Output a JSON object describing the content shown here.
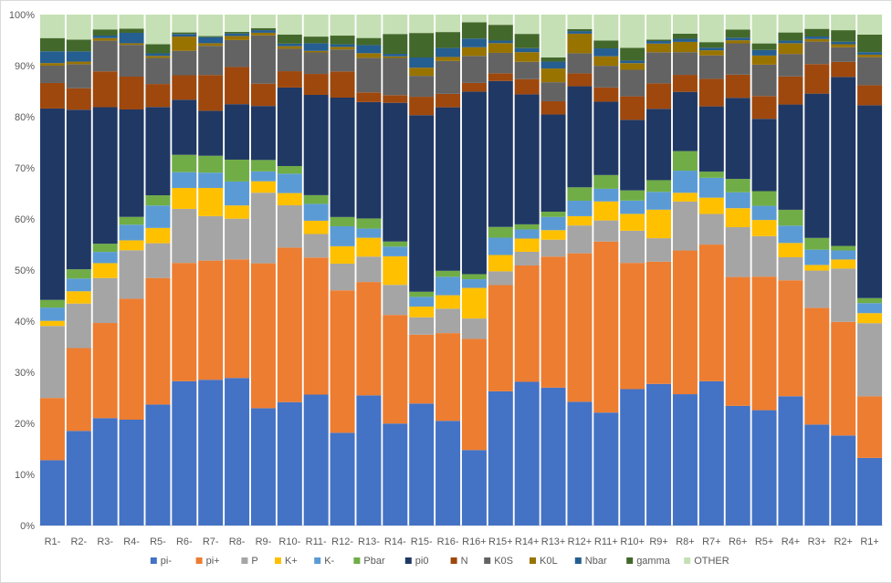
{
  "chart_data": {
    "type": "bar",
    "stacked": "percent",
    "title": "",
    "xlabel": "",
    "ylabel": "",
    "ylim": [
      0,
      100
    ],
    "yticks": [
      "0%",
      "10%",
      "20%",
      "30%",
      "40%",
      "50%",
      "60%",
      "70%",
      "80%",
      "90%",
      "100%"
    ],
    "grid": false,
    "legend_position": "bottom",
    "categories": [
      "R1-",
      "R2-",
      "R3-",
      "R4-",
      "R5-",
      "R6-",
      "R7-",
      "R8-",
      "R9-",
      "R10-",
      "R11-",
      "R12-",
      "R13-",
      "R14-",
      "R15-",
      "R16-",
      "R16+",
      "R15+",
      "R14+",
      "R13+",
      "R12+",
      "R11+",
      "R10+",
      "R9+",
      "R8+",
      "R7+",
      "R6+",
      "R5+",
      "R4+",
      "R3+",
      "R2+",
      "R1+"
    ],
    "series": [
      {
        "name": "pi-",
        "color": "#4472C4",
        "values": [
          12.8,
          18.5,
          21.0,
          20.3,
          23.7,
          28.3,
          28.5,
          29.0,
          22.6,
          24.2,
          25.6,
          18.1,
          25.6,
          20.0,
          23.9,
          21.0,
          14.8,
          26.3,
          28.3,
          26.1,
          24.0,
          21.4,
          26.7,
          27.8,
          25.5,
          28.3,
          23.3,
          22.8,
          25.3,
          19.8,
          17.9,
          13.5
        ]
      },
      {
        "name": "pi+",
        "color": "#ED7D31",
        "values": [
          12.2,
          16.2,
          18.6,
          23.2,
          24.8,
          23.2,
          23.3,
          23.3,
          27.9,
          30.3,
          26.8,
          27.8,
          22.3,
          21.3,
          13.5,
          17.6,
          21.8,
          20.8,
          22.9,
          24.8,
          28.8,
          32.4,
          24.7,
          24.0,
          27.9,
          26.8,
          25.1,
          26.4,
          22.7,
          22.9,
          22.6,
          12.3
        ]
      },
      {
        "name": "P",
        "color": "#A5A5A5",
        "values": [
          14.1,
          8.7,
          8.8,
          9.3,
          6.8,
          10.6,
          8.7,
          8.0,
          13.6,
          8.3,
          4.6,
          5.2,
          5.0,
          5.9,
          3.4,
          4.9,
          4.0,
          2.7,
          2.7,
          3.2,
          5.4,
          4.0,
          6.3,
          4.6,
          9.5,
          6.0,
          9.7,
          8.0,
          4.5,
          7.3,
          10.6,
          14.6
        ]
      },
      {
        "name": "K+",
        "color": "#FFC000",
        "values": [
          1.0,
          2.4,
          2.9,
          1.9,
          3.0,
          4.1,
          5.5,
          2.6,
          2.2,
          2.4,
          2.6,
          3.4,
          3.7,
          5.6,
          2.1,
          2.7,
          6.0,
          3.2,
          2.6,
          1.8,
          1.8,
          3.6,
          3.3,
          5.6,
          1.7,
          3.2,
          3.7,
          3.2,
          2.8,
          1.1,
          1.8,
          2.0
        ]
      },
      {
        "name": "K-",
        "color": "#5B9BD5",
        "values": [
          2.6,
          2.5,
          2.2,
          3.0,
          4.4,
          3.1,
          3.0,
          4.7,
          1.9,
          3.8,
          3.3,
          3.9,
          1.8,
          1.9,
          1.9,
          3.7,
          1.7,
          3.4,
          1.8,
          2.5,
          3.0,
          2.4,
          2.6,
          3.5,
          4.3,
          3.9,
          3.1,
          2.8,
          3.4,
          3.0,
          1.8,
          2.0
        ]
      },
      {
        "name": "Pbar",
        "color": "#70AD47",
        "values": [
          1.5,
          1.8,
          1.6,
          1.5,
          2.0,
          3.4,
          3.3,
          4.3,
          2.2,
          1.5,
          1.7,
          1.8,
          2.0,
          1.0,
          1.0,
          1.2,
          1.0,
          2.1,
          1.0,
          1.0,
          2.6,
          2.6,
          2.0,
          2.3,
          3.8,
          1.2,
          2.6,
          2.9,
          3.1,
          2.3,
          0.9,
          1.0
        ]
      },
      {
        "name": "pi0",
        "color": "#203864",
        "values": [
          37.5,
          31.2,
          26.7,
          20.6,
          17.3,
          10.8,
          8.8,
          10.9,
          10.4,
          15.4,
          19.6,
          23.3,
          22.9,
          27.2,
          34.6,
          32.8,
          35.8,
          28.6,
          25.6,
          18.4,
          19.6,
          13.9,
          13.8,
          14.0,
          11.5,
          12.8,
          15.8,
          14.3,
          20.6,
          28.3,
          33.6,
          38.5
        ]
      },
      {
        "name": "N",
        "color": "#9E480E",
        "values": [
          5.0,
          4.2,
          7.0,
          6.3,
          4.5,
          4.8,
          7.0,
          7.3,
          4.3,
          3.2,
          4.1,
          5.1,
          1.9,
          1.5,
          3.6,
          2.7,
          1.7,
          1.5,
          3.0,
          2.5,
          2.5,
          2.7,
          4.6,
          5.0,
          3.3,
          5.4,
          4.5,
          4.5,
          5.5,
          5.8,
          3.0,
          4.0
        ]
      },
      {
        "name": "K0S",
        "color": "#636363",
        "values": [
          3.4,
          4.7,
          6.0,
          6.1,
          5.1,
          4.8,
          5.7,
          5.3,
          9.3,
          4.4,
          4.2,
          4.3,
          6.8,
          7.3,
          4.1,
          6.6,
          5.3,
          4.0,
          3.4,
          3.6,
          3.9,
          4.1,
          5.2,
          6.1,
          4.4,
          4.6,
          6.1,
          6.2,
          4.4,
          4.4,
          2.9,
          5.6
        ]
      },
      {
        "name": "K0L",
        "color": "#997300",
        "values": [
          0.5,
          0.5,
          0.5,
          0.3,
          0.4,
          2.8,
          0.5,
          0.8,
          0.5,
          0.5,
          0.3,
          0.5,
          0.9,
          0.3,
          1.6,
          0.8,
          1.7,
          1.9,
          1.9,
          2.6,
          3.8,
          1.8,
          1.3,
          1.7,
          2.0,
          1.0,
          0.6,
          1.8,
          2.1,
          0.5,
          0.6,
          0.5
        ]
      },
      {
        "name": "Nbar",
        "color": "#255E91",
        "values": [
          2.3,
          2.0,
          0.5,
          2.0,
          0.5,
          0.5,
          1.2,
          0.5,
          0.5,
          0.5,
          1.5,
          0.5,
          1.6,
          0.5,
          2.0,
          1.8,
          1.7,
          0.5,
          0.8,
          1.3,
          0.5,
          1.5,
          0.5,
          0.5,
          0.6,
          0.5,
          0.5,
          1.1,
          0.5,
          0.5,
          0.5,
          0.5
        ]
      },
      {
        "name": "gamma",
        "color": "#43682B",
        "values": [
          2.6,
          2.3,
          1.2,
          0.8,
          1.8,
          0.3,
          0.2,
          0.3,
          0.4,
          1.8,
          1.3,
          1.7,
          1.4,
          3.9,
          4.8,
          3.2,
          3.2,
          3.1,
          2.8,
          0.8,
          0.4,
          1.5,
          2.5,
          0.3,
          1.0,
          1.1,
          1.6,
          1.3,
          1.6,
          1.5,
          2.3,
          3.5
        ]
      },
      {
        "name": "OTHER",
        "color": "#C5E0B4",
        "values": [
          4.6,
          4.9,
          2.9,
          2.7,
          5.8,
          3.5,
          4.2,
          3.4,
          2.6,
          3.9,
          4.3,
          4.1,
          4.6,
          3.8,
          3.6,
          3.5,
          1.5,
          2.0,
          3.8,
          8.1,
          2.8,
          4.9,
          6.5,
          4.9,
          3.7,
          5.4,
          2.9,
          5.7,
          3.5,
          2.8,
          3.1,
          4.0
        ]
      }
    ]
  }
}
